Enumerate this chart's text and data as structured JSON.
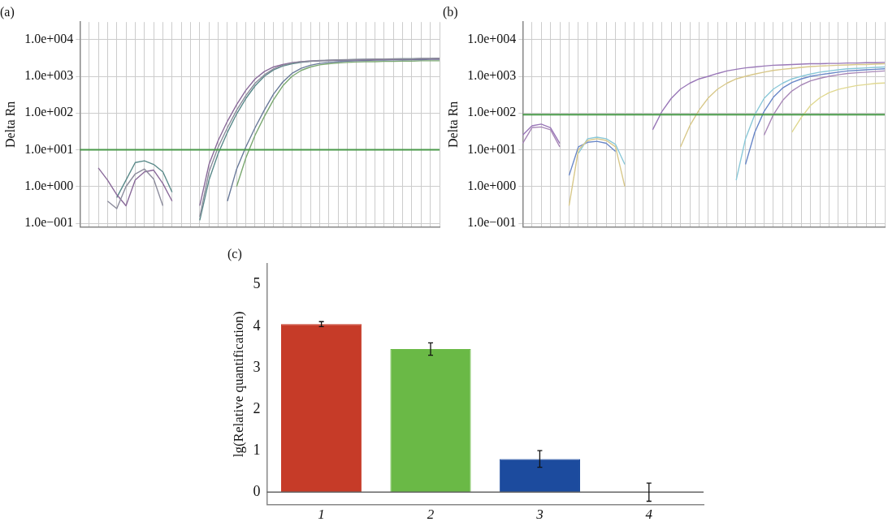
{
  "chart_data": [
    {
      "type": "line",
      "title": "(a)",
      "ylabel": "Delta Rn",
      "log": true,
      "grid": true,
      "legend": false,
      "marker": "none",
      "tick_labels": "y",
      "categories": [
        null,
        null,
        null,
        null,
        null,
        null,
        null,
        null,
        null,
        null,
        null,
        null,
        null,
        null,
        null,
        null,
        null,
        null,
        null,
        null,
        null,
        null,
        null,
        null,
        null,
        null,
        null,
        null,
        null,
        null,
        null,
        null,
        null,
        null,
        null,
        null,
        null,
        null,
        null,
        null
      ],
      "ylim": [
        0.08,
        30000
      ],
      "yticks": [
        {
          "value": 0.1,
          "label": "1.0e−001"
        },
        {
          "value": 1,
          "label": "1.0e+000"
        },
        {
          "value": 10,
          "label": "1.0e+001"
        },
        {
          "value": 100,
          "label": "1.0e+002"
        },
        {
          "value": 1000,
          "label": "1.0e+003"
        },
        {
          "value": 10000,
          "label": "1.0e+004"
        }
      ],
      "ref_lines": [
        {
          "axis": "y",
          "value": 10,
          "color": "#4a9a4a"
        }
      ],
      "series": [
        {
          "color": "#8c8c9c",
          "values": [
            null,
            null,
            null,
            0.4,
            0.25,
            1.0,
            2.2,
            3.0,
            1.6,
            0.3,
            null,
            null,
            null,
            null,
            null,
            null,
            null,
            null,
            null,
            null,
            null,
            null,
            null,
            null,
            null,
            null,
            null,
            null,
            null,
            null,
            null,
            null,
            null,
            null,
            null,
            null,
            null,
            null,
            null,
            null
          ]
        },
        {
          "color": "#8c8c9c",
          "values": [
            null,
            null,
            null,
            null,
            null,
            null,
            null,
            null,
            null,
            null,
            null,
            null,
            null,
            0.15,
            2.5,
            12,
            40,
            120,
            300,
            650,
            1100,
            1600,
            2000,
            2300,
            2500,
            2600,
            2700,
            2750,
            2800,
            2850,
            2900,
            2900,
            2950,
            2950,
            3000,
            3000,
            3000,
            3050,
            3050,
            3100
          ]
        },
        {
          "color": "#8a6a9a",
          "values": [
            null,
            null,
            3.2,
            1.5,
            0.6,
            0.3,
            1.5,
            2.5,
            2.8,
            1.2,
            0.4,
            null,
            null,
            null,
            null,
            null,
            null,
            null,
            null,
            null,
            null,
            null,
            null,
            null,
            null,
            null,
            null,
            null,
            null,
            null,
            null,
            null,
            null,
            null,
            null,
            null,
            null,
            null,
            null,
            null
          ]
        },
        {
          "color": "#8a6a9a",
          "values": [
            null,
            null,
            null,
            null,
            null,
            null,
            null,
            null,
            null,
            null,
            null,
            null,
            null,
            0.3,
            4,
            18,
            60,
            170,
            420,
            850,
            1350,
            1800,
            2100,
            2350,
            2500,
            2600,
            2650,
            2700,
            2750,
            2800,
            2800,
            2850,
            2850,
            2900,
            2900,
            2950,
            2950,
            3000,
            3000,
            3000
          ]
        },
        {
          "color": "#5a8a8a",
          "values": [
            null,
            null,
            null,
            null,
            0.5,
            1.5,
            4.5,
            5,
            4,
            2.5,
            0.7,
            null,
            null,
            null,
            null,
            null,
            null,
            null,
            null,
            null,
            null,
            null,
            null,
            null,
            null,
            null,
            null,
            null,
            null,
            null,
            null,
            null,
            null,
            null,
            null,
            null,
            null,
            null,
            null,
            null
          ]
        },
        {
          "color": "#5a8a8a",
          "values": [
            null,
            null,
            null,
            null,
            null,
            null,
            null,
            null,
            null,
            null,
            null,
            null,
            null,
            0.12,
            1.5,
            8,
            30,
            95,
            250,
            550,
            1000,
            1500,
            1900,
            2200,
            2400,
            2550,
            2650,
            2700,
            2750,
            2800,
            2850,
            2900,
            2900,
            2950,
            2950,
            3000,
            3000,
            3050,
            3050,
            3100
          ]
        },
        {
          "color": "#6a7a9a",
          "values": [
            null,
            null,
            null,
            null,
            null,
            null,
            null,
            null,
            null,
            null,
            null,
            null,
            null,
            null,
            null,
            null,
            0.4,
            3,
            12,
            40,
            120,
            330,
            700,
            1200,
            1650,
            2000,
            2250,
            2400,
            2500,
            2600,
            2650,
            2700,
            2750,
            2750,
            2800,
            2800,
            2850,
            2850,
            2900,
            2900
          ]
        },
        {
          "color": "#7aa870",
          "values": [
            null,
            null,
            null,
            null,
            null,
            null,
            null,
            null,
            null,
            null,
            null,
            null,
            null,
            null,
            null,
            null,
            null,
            1,
            6,
            25,
            80,
            230,
            550,
            1000,
            1450,
            1800,
            2050,
            2200,
            2300,
            2400,
            2450,
            2500,
            2500,
            2550,
            2550,
            2600,
            2600,
            2650,
            2650,
            2650
          ]
        }
      ]
    },
    {
      "type": "line",
      "title": "(b)",
      "ylabel": "Delta Rn",
      "log": true,
      "grid": true,
      "legend": false,
      "marker": "none",
      "tick_labels": "y",
      "categories": [
        null,
        null,
        null,
        null,
        null,
        null,
        null,
        null,
        null,
        null,
        null,
        null,
        null,
        null,
        null,
        null,
        null,
        null,
        null,
        null,
        null,
        null,
        null,
        null,
        null,
        null,
        null,
        null,
        null,
        null,
        null,
        null,
        null,
        null,
        null,
        null,
        null,
        null,
        null,
        null
      ],
      "ylim": [
        0.08,
        30000
      ],
      "yticks": [
        {
          "value": 0.1,
          "label": "1.0e−001"
        },
        {
          "value": 1,
          "label": "1.0e+000"
        },
        {
          "value": 10,
          "label": "1.0e+001"
        },
        {
          "value": 100,
          "label": "1.0e+002"
        },
        {
          "value": 1000,
          "label": "1.0e+003"
        },
        {
          "value": 10000,
          "label": "1.0e+004"
        }
      ],
      "ref_lines": [
        {
          "axis": "y",
          "value": 90,
          "color": "#4a9a4a"
        }
      ],
      "series": [
        {
          "color": "#9a78b8",
          "values": [
            25,
            45,
            50,
            40,
            15,
            null,
            null,
            null,
            null,
            null,
            null,
            null,
            null,
            null,
            null,
            null,
            null,
            null,
            null,
            null,
            null,
            null,
            null,
            null,
            null,
            null,
            null,
            null,
            null,
            null,
            null,
            null,
            null,
            null,
            null,
            null,
            null,
            null,
            null,
            null
          ]
        },
        {
          "color": "#9a78b8",
          "values": [
            null,
            null,
            null,
            null,
            null,
            null,
            null,
            null,
            null,
            null,
            null,
            null,
            null,
            null,
            35,
            110,
            250,
            450,
            650,
            850,
            1000,
            1200,
            1400,
            1550,
            1700,
            1800,
            1900,
            2000,
            2050,
            2100,
            2150,
            2200,
            2200,
            2250,
            2250,
            2300,
            2300,
            2350,
            2350,
            2400
          ]
        },
        {
          "color": "#d8c88a",
          "values": [
            null,
            null,
            null,
            null,
            null,
            0.3,
            10,
            18,
            20,
            18,
            12,
            1,
            null,
            null,
            null,
            null,
            null,
            null,
            null,
            null,
            null,
            null,
            null,
            null,
            null,
            null,
            null,
            null,
            null,
            null,
            null,
            null,
            null,
            null,
            null,
            null,
            null,
            null,
            null,
            null
          ]
        },
        {
          "color": "#d8c88a",
          "values": [
            null,
            null,
            null,
            null,
            null,
            null,
            null,
            null,
            null,
            null,
            null,
            null,
            null,
            null,
            null,
            null,
            null,
            12,
            45,
            120,
            260,
            450,
            650,
            850,
            1000,
            1150,
            1300,
            1450,
            1550,
            1650,
            1750,
            1850,
            1900,
            1950,
            2000,
            2050,
            2100,
            2100,
            2150,
            2200
          ]
        },
        {
          "color": "#8ac8d8",
          "values": [
            null,
            null,
            null,
            null,
            null,
            null,
            8,
            20,
            22,
            20,
            14,
            4,
            null,
            null,
            null,
            null,
            null,
            null,
            null,
            null,
            null,
            null,
            null,
            null,
            null,
            null,
            null,
            null,
            null,
            null,
            null,
            null,
            null,
            null,
            null,
            null,
            null,
            null,
            null,
            null
          ]
        },
        {
          "color": "#8ac8d8",
          "values": [
            null,
            null,
            null,
            null,
            null,
            null,
            null,
            null,
            null,
            null,
            null,
            null,
            null,
            null,
            null,
            null,
            null,
            null,
            null,
            null,
            null,
            null,
            null,
            1.5,
            20,
            90,
            250,
            450,
            650,
            850,
            1000,
            1150,
            1300,
            1400,
            1500,
            1600,
            1650,
            1700,
            1750,
            1800
          ]
        },
        {
          "color": "#6a88c8",
          "values": [
            null,
            null,
            null,
            null,
            null,
            2,
            12,
            16,
            17,
            15,
            9,
            null,
            null,
            null,
            null,
            null,
            null,
            null,
            null,
            null,
            null,
            null,
            null,
            null,
            null,
            null,
            null,
            null,
            null,
            null,
            null,
            null,
            null,
            null,
            null,
            null,
            null,
            null,
            null,
            null
          ]
        },
        {
          "color": "#6a88c8",
          "values": [
            null,
            null,
            null,
            null,
            null,
            null,
            null,
            null,
            null,
            null,
            null,
            null,
            null,
            null,
            null,
            null,
            null,
            null,
            null,
            null,
            null,
            null,
            null,
            null,
            4,
            30,
            110,
            270,
            480,
            680,
            850,
            1000,
            1100,
            1200,
            1300,
            1400,
            1450,
            1500,
            1550,
            1600
          ]
        },
        {
          "color": "#a888b8",
          "values": [
            15,
            40,
            42,
            35,
            12,
            null,
            null,
            null,
            null,
            null,
            null,
            null,
            null,
            null,
            null,
            null,
            null,
            null,
            null,
            null,
            null,
            null,
            null,
            null,
            null,
            null,
            null,
            null,
            null,
            null,
            null,
            null,
            null,
            null,
            null,
            null,
            null,
            null,
            null,
            null
          ]
        },
        {
          "color": "#a888b8",
          "values": [
            null,
            null,
            null,
            null,
            null,
            null,
            null,
            null,
            null,
            null,
            null,
            null,
            null,
            null,
            null,
            null,
            null,
            null,
            null,
            null,
            null,
            null,
            null,
            null,
            null,
            null,
            25,
            90,
            220,
            400,
            580,
            750,
            880,
            1000,
            1100,
            1200,
            1250,
            1300,
            1350,
            1400
          ]
        },
        {
          "color": "#e0d890",
          "values": [
            null,
            null,
            null,
            null,
            null,
            null,
            null,
            null,
            null,
            null,
            null,
            null,
            null,
            null,
            null,
            null,
            null,
            null,
            null,
            null,
            null,
            null,
            null,
            null,
            null,
            null,
            null,
            null,
            null,
            30,
            75,
            160,
            260,
            360,
            440,
            500,
            560,
            600,
            640,
            660
          ]
        }
      ]
    },
    {
      "type": "bar",
      "title": "(c)",
      "ylabel": "lg(Relative quantification)",
      "legend": false,
      "grid": false,
      "categories": [
        "1",
        "2",
        "3",
        "4"
      ],
      "values": [
        4.05,
        3.45,
        0.8,
        0
      ],
      "errors": [
        0.06,
        0.15,
        0.2,
        0.22
      ],
      "colors": [
        "#c63b28",
        "#6ab946",
        "#1c4b9e",
        "#1c4b9e"
      ],
      "ylim": [
        -0.3,
        5.5
      ],
      "yticks": [
        0,
        1,
        2,
        3,
        4,
        5
      ],
      "ref_lines": [
        {
          "axis": "y",
          "value": 0,
          "color": "#666666"
        }
      ]
    }
  ]
}
